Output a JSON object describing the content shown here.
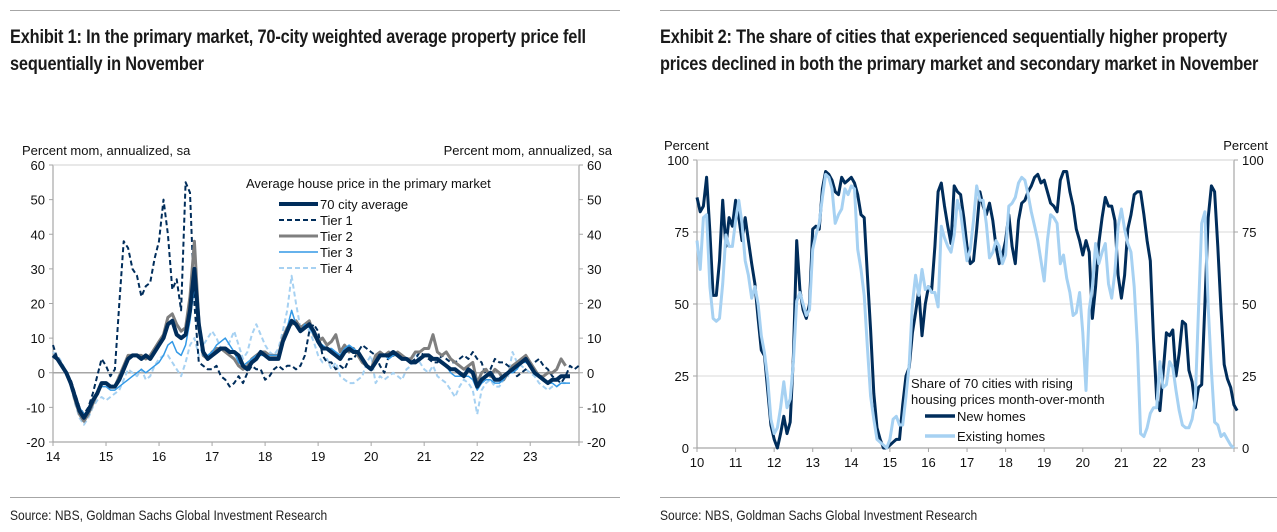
{
  "exhibits": [
    {
      "title": "Exhibit 1: In the primary market, 70-city weighted average property price fell sequentially in November",
      "source": "Source: NBS, Goldman Sachs Global Investment Research"
    },
    {
      "title": "Exhibit 2: The share of cities that experienced sequentially higher property prices declined in both the primary market and secondary market in November",
      "source": "Source: NBS, Goldman Sachs Global Investment Research"
    }
  ],
  "chart_data": [
    {
      "type": "line",
      "title": "Average house price in the primary market",
      "ylabel_left": "Percent mom, annualized, sa",
      "ylabel_right": "Percent mom, annualized, sa",
      "xlabel": "",
      "ylim": [
        -20,
        60
      ],
      "yticks": [
        -20,
        -10,
        0,
        10,
        20,
        30,
        40,
        50,
        60
      ],
      "xlim": [
        14.0,
        23.92
      ],
      "xticks": [
        "14",
        "15",
        "16",
        "17",
        "18",
        "19",
        "20",
        "21",
        "22",
        "23"
      ],
      "legend_title": "Average house price in the primary market",
      "legend_position": "top-right",
      "x_start": 14.0,
      "x_step_months": 1,
      "series": [
        {
          "name": "70 city average",
          "color": "#002d5b",
          "style": "solid-thick",
          "values": [
            5,
            4,
            2,
            0,
            -3,
            -7,
            -11,
            -13,
            -11,
            -8,
            -6,
            -3,
            -3,
            -4,
            -4,
            -2,
            1,
            4,
            5,
            5,
            4,
            5,
            4,
            6,
            8,
            10,
            14,
            15,
            11,
            10,
            11,
            18,
            30,
            14,
            6,
            4,
            5,
            6,
            7,
            7,
            6,
            6,
            5,
            2,
            1,
            3,
            4,
            6,
            5,
            4,
            4,
            4,
            9,
            12,
            15,
            14,
            12,
            13,
            14,
            12,
            9,
            7,
            7,
            6,
            5,
            4,
            6,
            7,
            6,
            6,
            4,
            2,
            1,
            3,
            5,
            5,
            5,
            6,
            5,
            4,
            4,
            3,
            3,
            4,
            5,
            5,
            4,
            4,
            3,
            2,
            1,
            1,
            0,
            -1,
            1,
            0,
            -4,
            -2,
            -1,
            0,
            -2,
            -2,
            -1,
            0,
            1,
            2,
            3,
            4,
            2,
            0,
            -1,
            -2,
            -3,
            -2,
            -2,
            -1,
            -1,
            -1
          ]
        },
        {
          "name": "Tier 1",
          "color": "#002d5b",
          "style": "dashed",
          "values": [
            8,
            4,
            2,
            0,
            -2,
            -6,
            -10,
            -12,
            -10,
            -6,
            -1,
            4,
            2,
            -1,
            1,
            20,
            38,
            36,
            30,
            28,
            22,
            25,
            26,
            33,
            38,
            50,
            40,
            24,
            27,
            18,
            55,
            52,
            20,
            3,
            2,
            1,
            1,
            2,
            -1,
            -2,
            -4,
            -3,
            -1,
            -3,
            0,
            2,
            1,
            1,
            -2,
            -1,
            1,
            2,
            1,
            2,
            2,
            1,
            2,
            5,
            12,
            14,
            12,
            5,
            3,
            3,
            1,
            2,
            1,
            4,
            4,
            6,
            8,
            7,
            6,
            5,
            2,
            0,
            5,
            6,
            5,
            4,
            4,
            3,
            4,
            6,
            5,
            4,
            3,
            3,
            5,
            4,
            3,
            3,
            4,
            5,
            4,
            6,
            4,
            3,
            -1,
            1,
            4,
            3,
            3,
            2,
            1,
            -1,
            0,
            1,
            2,
            3,
            4,
            2,
            1,
            -1,
            -2,
            -3,
            -1,
            2,
            1,
            2
          ]
        },
        {
          "name": "Tier 2",
          "color": "#7f7f7f",
          "style": "solid",
          "values": [
            5,
            4,
            2,
            0,
            -3,
            -8,
            -12,
            -14,
            -12,
            -9,
            -6,
            -3,
            -3,
            -4,
            -4,
            -1,
            2,
            5,
            5,
            5,
            5,
            4,
            5,
            7,
            9,
            11,
            16,
            17,
            14,
            12,
            13,
            22,
            38,
            15,
            5,
            4,
            6,
            7,
            7,
            6,
            5,
            4,
            2,
            1,
            2,
            4,
            5,
            6,
            6,
            5,
            5,
            5,
            10,
            13,
            14,
            15,
            13,
            14,
            15,
            11,
            9,
            10,
            8,
            9,
            11,
            6,
            8,
            6,
            7,
            5,
            3,
            2,
            1,
            5,
            6,
            5,
            6,
            5,
            6,
            5,
            4,
            4,
            6,
            6,
            7,
            7,
            11,
            6,
            5,
            6,
            4,
            3,
            2,
            1,
            2,
            3,
            -3,
            0,
            1,
            -1,
            1,
            0,
            -2,
            0,
            2,
            3,
            4,
            5,
            3,
            1,
            -1,
            -1,
            0,
            0,
            1,
            4,
            2
          ]
        },
        {
          "name": "Tier 3",
          "color": "#3399e6",
          "style": "solid-thin",
          "values": [
            5,
            4,
            2,
            0,
            -3,
            -7,
            -10,
            -12,
            -11,
            -8,
            -6,
            -4,
            -4,
            -5,
            -5,
            -4,
            -3,
            -2,
            -1,
            0,
            1,
            0,
            1,
            2,
            3,
            5,
            8,
            9,
            6,
            5,
            8,
            15,
            25,
            12,
            5,
            5,
            6,
            8,
            9,
            10,
            8,
            6,
            3,
            2,
            3,
            4,
            5,
            5,
            5,
            5,
            5,
            5,
            9,
            13,
            18,
            14,
            12,
            14,
            13,
            11,
            9,
            8,
            7,
            7,
            6,
            5,
            7,
            8,
            7,
            6,
            4,
            2,
            1,
            3,
            5,
            5,
            4,
            5,
            5,
            4,
            4,
            3,
            3,
            4,
            5,
            5,
            4,
            4,
            3,
            2,
            0,
            -1,
            -1,
            -1,
            -1,
            -2,
            -5,
            -3,
            -2,
            -2,
            -3,
            -3,
            -2,
            0,
            0,
            1,
            3,
            3,
            2,
            0,
            -1,
            -2,
            -3,
            -3,
            -4,
            -3,
            -3,
            -3
          ]
        },
        {
          "name": "Tier 4",
          "color": "#a6d1f2",
          "style": "dashed",
          "values": [
            6,
            5,
            3,
            0,
            -4,
            -9,
            -13,
            -15,
            -13,
            -10,
            -8,
            -7,
            -8,
            -7,
            -6,
            -5,
            -2,
            1,
            0,
            -1,
            1,
            -2,
            -1,
            2,
            4,
            5,
            5,
            3,
            1,
            -1,
            3,
            8,
            10,
            5,
            8,
            10,
            12,
            10,
            7,
            6,
            9,
            12,
            8,
            4,
            6,
            11,
            14,
            11,
            8,
            6,
            5,
            7,
            12,
            18,
            28,
            20,
            13,
            14,
            12,
            9,
            5,
            3,
            4,
            1,
            3,
            -1,
            -2,
            -3,
            -3,
            -2,
            -1,
            3,
            5,
            -3,
            -1,
            -2,
            -1,
            0,
            -1,
            -2,
            1,
            2,
            6,
            3,
            1,
            0,
            2,
            -1,
            -2,
            -3,
            -5,
            -7,
            -4,
            -2,
            -3,
            -5,
            -12,
            -5,
            -3,
            -2,
            -4,
            -4,
            -2,
            -1,
            6,
            3,
            2,
            1,
            0,
            -1,
            -3,
            -4,
            -5,
            -4,
            -4,
            -3,
            -3
          ]
        }
      ]
    },
    {
      "type": "line",
      "title": "",
      "ylabel_left": "Percent",
      "ylabel_right": "Percent",
      "xlabel": "",
      "ylim": [
        0,
        100
      ],
      "yticks": [
        0,
        25,
        50,
        75,
        100
      ],
      "xlim": [
        10.0,
        23.92
      ],
      "xticks": [
        "10",
        "11",
        "12",
        "13",
        "14",
        "15",
        "16",
        "17",
        "18",
        "19",
        "20",
        "21",
        "22",
        "23"
      ],
      "grid": true,
      "legend_title": "Share of 70 cities with rising housing prices month-over-month",
      "legend_position": "bottom-left",
      "x_start": 10.0,
      "x_step_months": 1,
      "series": [
        {
          "name": "New homes",
          "color": "#002d5b",
          "values": [
            87,
            82,
            84,
            94,
            75,
            53,
            53,
            65,
            86,
            70,
            80,
            77,
            86,
            80,
            72,
            80,
            72,
            64,
            57,
            45,
            34,
            32,
            20,
            8,
            3,
            0,
            5,
            11,
            5,
            9,
            32,
            72,
            55,
            48,
            45,
            50,
            76,
            77,
            76,
            90,
            96,
            95,
            93,
            89,
            88,
            94,
            92,
            93,
            94,
            92,
            88,
            81,
            80,
            60,
            41,
            19,
            7,
            3,
            0,
            0,
            1,
            2,
            3,
            3,
            15,
            25,
            28,
            40,
            47,
            55,
            39,
            50,
            56,
            55,
            70,
            89,
            92,
            84,
            77,
            71,
            91,
            89,
            88,
            80,
            70,
            64,
            65,
            76,
            89,
            84,
            81,
            85,
            79,
            70,
            64,
            67,
            72,
            81,
            70,
            64,
            79,
            85,
            86,
            89,
            91,
            94,
            95,
            92,
            93,
            89,
            85,
            84,
            82,
            93,
            96,
            96,
            89,
            84,
            76,
            72,
            67,
            72,
            68,
            45,
            56,
            71,
            80,
            87,
            84,
            84,
            79,
            60,
            52,
            60,
            76,
            81,
            88,
            89,
            89,
            81,
            72,
            65,
            38,
            17,
            13,
            26,
            40,
            39,
            41,
            25,
            33,
            44,
            43,
            27,
            23,
            14,
            21,
            22,
            50,
            80,
            91,
            89,
            70,
            48,
            29,
            24,
            21,
            15,
            13
          ]
        },
        {
          "name": "Existing homes",
          "color": "#a6d1f2",
          "values": [
            72,
            62,
            80,
            81,
            56,
            45,
            44,
            45,
            57,
            74,
            70,
            70,
            79,
            86,
            78,
            65,
            60,
            52,
            56,
            50,
            39,
            33,
            24,
            10,
            5,
            7,
            14,
            23,
            14,
            17,
            30,
            51,
            54,
            50,
            46,
            48,
            69,
            74,
            78,
            87,
            95,
            94,
            90,
            78,
            81,
            83,
            90,
            88,
            91,
            90,
            69,
            62,
            53,
            35,
            18,
            10,
            3,
            2,
            1,
            0,
            3,
            10,
            11,
            8,
            8,
            18,
            29,
            50,
            60,
            53,
            62,
            55,
            56,
            54,
            54,
            49,
            77,
            73,
            70,
            68,
            74,
            86,
            82,
            73,
            65,
            69,
            79,
            91,
            86,
            86,
            78,
            66,
            68,
            72,
            70,
            64,
            67,
            84,
            85,
            87,
            92,
            94,
            93,
            88,
            82,
            77,
            72,
            65,
            58,
            72,
            81,
            80,
            78,
            64,
            67,
            59,
            54,
            46,
            47,
            54,
            40,
            20,
            48,
            56,
            71,
            64,
            68,
            71,
            57,
            52,
            61,
            77,
            83,
            76,
            71,
            68,
            56,
            36,
            5,
            4,
            7,
            12,
            14,
            14,
            30,
            21,
            22,
            30,
            28,
            20,
            13,
            8,
            7,
            7,
            10,
            17,
            48,
            78,
            82,
            49,
            27,
            9,
            8,
            4,
            5,
            3,
            1,
            0
          ]
        }
      ]
    }
  ]
}
